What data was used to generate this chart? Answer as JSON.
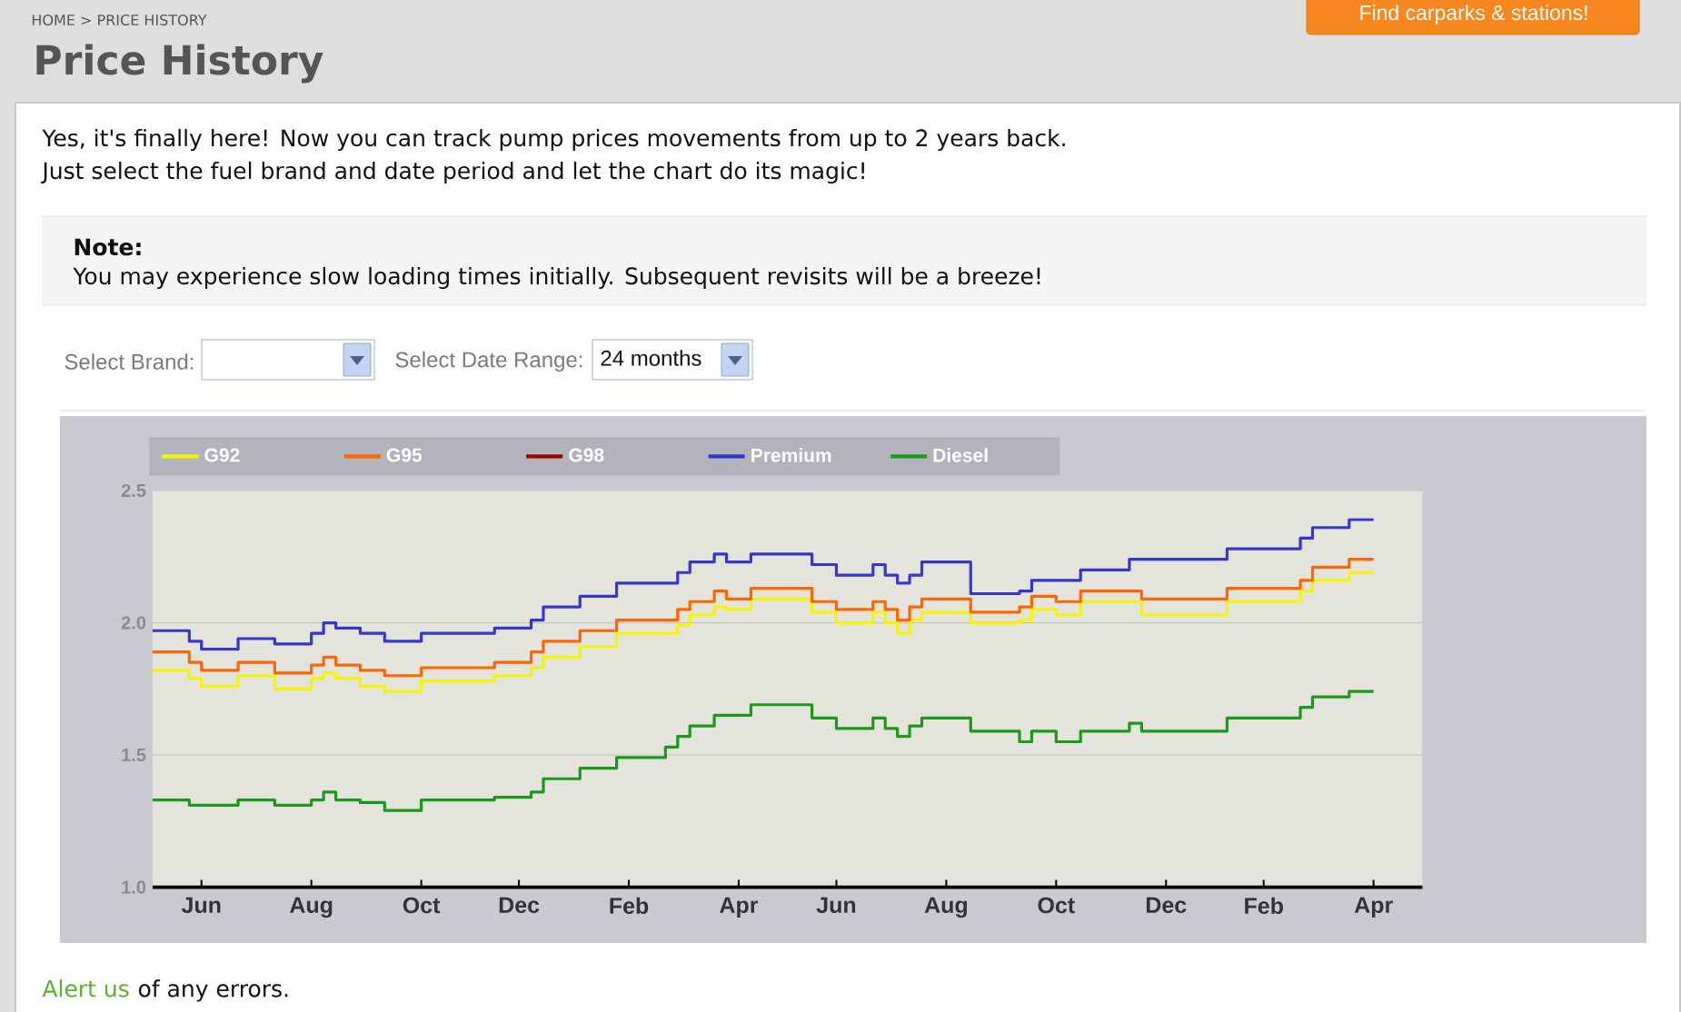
{
  "chart_data": {
    "type": "step",
    "title": "Price History",
    "annotations": [
      "HOME > PRICE HISTORY",
      "Find carparks & stations!",
      "Yes, it's finally here! Now you can track pump prices movements from up to 2 years back.",
      "Just select the fuel brand and date period and let the chart do its magic!",
      "Note:",
      "You may experience slow loading times initially. Subsequent revisits will be a breeze!",
      "Select Brand:",
      "Select Date Range:",
      "24 months",
      "Alert us",
      "of any errors."
    ],
    "categories": [
      null,
      null,
      null,
      null,
      "Jun",
      null,
      null,
      null,
      null,
      null,
      null,
      null,
      null,
      "Aug",
      null,
      null,
      null,
      null,
      null,
      null,
      null,
      null,
      "Oct",
      null,
      null,
      null,
      null,
      null,
      null,
      null,
      "Dec",
      null,
      null,
      null,
      null,
      null,
      null,
      null,
      null,
      "Feb",
      null,
      null,
      null,
      null,
      null,
      null,
      null,
      null,
      "Apr",
      null,
      null,
      null,
      null,
      null,
      null,
      null,
      "Jun",
      null,
      null,
      null,
      null,
      null,
      null,
      null,
      null,
      "Aug",
      null,
      null,
      null,
      null,
      null,
      null,
      null,
      null,
      "Oct",
      null,
      null,
      null,
      null,
      null,
      null,
      null,
      null,
      "Dec",
      null,
      null,
      null,
      null,
      null,
      null,
      null,
      "Feb",
      null,
      null,
      null,
      null,
      null,
      null,
      null,
      null,
      "Apr",
      null,
      null,
      null
    ],
    "ylim": [
      1.0,
      2.5
    ],
    "yticks": [
      {
        "value": 1.0,
        "label": "1.0"
      },
      {
        "value": 1.5,
        "label": "1.5"
      },
      {
        "value": 2.0,
        "label": "2.0"
      },
      {
        "value": 2.5,
        "label": "2.5"
      }
    ],
    "grid": "y",
    "legend": "top left",
    "series": [
      {
        "name": "G92",
        "color": "#f5f500",
        "values": [
          1.82,
          1.82,
          1.82,
          1.79,
          1.76,
          1.76,
          1.76,
          1.8,
          1.8,
          1.8,
          1.75,
          1.75,
          1.75,
          1.79,
          1.81,
          1.79,
          1.79,
          1.76,
          1.76,
          1.74,
          1.74,
          1.74,
          1.78,
          1.78,
          1.78,
          1.78,
          1.78,
          1.78,
          1.8,
          1.8,
          1.8,
          1.83,
          1.87,
          1.87,
          1.87,
          1.91,
          1.91,
          1.91,
          1.96,
          1.96,
          1.96,
          1.96,
          1.96,
          1.99,
          2.03,
          2.03,
          2.06,
          2.05,
          2.05,
          2.09,
          2.09,
          2.09,
          2.09,
          2.09,
          2.04,
          2.04,
          2.0,
          2.0,
          2.0,
          2.04,
          2.0,
          1.96,
          2.01,
          2.04,
          2.04,
          2.04,
          2.04,
          2.0,
          2.0,
          2.0,
          2.0,
          2.01,
          2.05,
          2.05,
          2.03,
          2.03,
          2.08,
          2.08,
          2.08,
          2.08,
          2.08,
          2.03,
          2.03,
          2.03,
          2.03,
          2.03,
          2.03,
          2.03,
          2.08,
          2.08,
          2.08,
          2.08,
          2.08,
          2.08,
          2.12,
          2.16,
          2.16,
          2.16,
          2.19,
          2.19,
          2.19,
          null,
          null,
          null
        ]
      },
      {
        "name": "G95",
        "color": "#ff6600",
        "values": [
          1.89,
          1.89,
          1.89,
          1.85,
          1.82,
          1.82,
          1.82,
          1.85,
          1.85,
          1.85,
          1.81,
          1.81,
          1.81,
          1.84,
          1.87,
          1.84,
          1.84,
          1.82,
          1.82,
          1.8,
          1.8,
          1.8,
          1.83,
          1.83,
          1.83,
          1.83,
          1.83,
          1.83,
          1.85,
          1.85,
          1.85,
          1.89,
          1.93,
          1.93,
          1.93,
          1.97,
          1.97,
          1.97,
          2.01,
          2.01,
          2.01,
          2.01,
          2.01,
          2.05,
          2.08,
          2.08,
          2.12,
          2.09,
          2.09,
          2.13,
          2.13,
          2.13,
          2.13,
          2.13,
          2.08,
          2.08,
          2.05,
          2.05,
          2.05,
          2.08,
          2.05,
          2.01,
          2.06,
          2.09,
          2.09,
          2.09,
          2.09,
          2.04,
          2.04,
          2.04,
          2.04,
          2.06,
          2.1,
          2.1,
          2.08,
          2.08,
          2.12,
          2.12,
          2.12,
          2.12,
          2.12,
          2.09,
          2.09,
          2.09,
          2.09,
          2.09,
          2.09,
          2.09,
          2.13,
          2.13,
          2.13,
          2.13,
          2.13,
          2.13,
          2.16,
          2.21,
          2.21,
          2.21,
          2.24,
          2.24,
          2.24,
          null,
          null,
          null
        ]
      },
      {
        "name": "G98",
        "color": "#990000",
        "values": [
          null,
          null,
          null,
          null,
          null,
          null,
          null,
          null,
          null,
          null,
          null,
          null,
          null,
          null,
          null,
          null,
          null,
          null,
          null,
          null,
          null,
          null,
          null,
          null,
          null,
          null,
          null,
          null,
          null,
          null,
          null,
          null,
          null,
          null,
          null,
          null,
          null,
          null,
          null,
          null,
          null,
          null,
          null,
          null,
          null,
          null,
          null,
          null,
          null,
          null,
          null,
          null,
          null,
          null,
          null,
          null,
          null,
          null,
          null,
          null,
          null,
          null,
          null,
          null,
          null,
          null,
          null,
          null,
          null,
          null,
          null,
          null,
          null,
          null,
          null,
          null,
          null,
          null,
          null,
          null,
          null,
          null,
          null,
          null,
          null,
          null,
          null,
          null,
          null,
          null,
          null,
          null,
          null,
          null,
          null,
          null,
          null,
          null,
          null,
          null,
          null,
          null,
          null,
          null
        ]
      },
      {
        "name": "Premium",
        "color": "#3535d0",
        "values": [
          1.97,
          1.97,
          1.97,
          1.93,
          1.9,
          1.9,
          1.9,
          1.94,
          1.94,
          1.94,
          1.92,
          1.92,
          1.92,
          1.96,
          2.0,
          1.98,
          1.98,
          1.96,
          1.96,
          1.93,
          1.93,
          1.93,
          1.96,
          1.96,
          1.96,
          1.96,
          1.96,
          1.96,
          1.98,
          1.98,
          1.98,
          2.01,
          2.06,
          2.06,
          2.06,
          2.1,
          2.1,
          2.1,
          2.15,
          2.15,
          2.15,
          2.15,
          2.15,
          2.19,
          2.23,
          2.23,
          2.26,
          2.23,
          2.23,
          2.26,
          2.26,
          2.26,
          2.26,
          2.26,
          2.22,
          2.22,
          2.18,
          2.18,
          2.18,
          2.22,
          2.18,
          2.15,
          2.18,
          2.23,
          2.23,
          2.23,
          2.23,
          2.11,
          2.11,
          2.11,
          2.11,
          2.12,
          2.16,
          2.16,
          2.16,
          2.16,
          2.2,
          2.2,
          2.2,
          2.2,
          2.24,
          2.24,
          2.24,
          2.24,
          2.24,
          2.24,
          2.24,
          2.24,
          2.28,
          2.28,
          2.28,
          2.28,
          2.28,
          2.28,
          2.32,
          2.36,
          2.36,
          2.36,
          2.39,
          2.39,
          2.39,
          null,
          null,
          null
        ]
      },
      {
        "name": "Diesel",
        "color": "#1a9a1a",
        "values": [
          1.33,
          1.33,
          1.33,
          1.31,
          1.31,
          1.31,
          1.31,
          1.33,
          1.33,
          1.33,
          1.31,
          1.31,
          1.31,
          1.33,
          1.36,
          1.33,
          1.33,
          1.32,
          1.32,
          1.29,
          1.29,
          1.29,
          1.33,
          1.33,
          1.33,
          1.33,
          1.33,
          1.33,
          1.34,
          1.34,
          1.34,
          1.36,
          1.41,
          1.41,
          1.41,
          1.45,
          1.45,
          1.45,
          1.49,
          1.49,
          1.49,
          1.49,
          1.53,
          1.57,
          1.61,
          1.61,
          1.65,
          1.65,
          1.65,
          1.69,
          1.69,
          1.69,
          1.69,
          1.69,
          1.64,
          1.64,
          1.6,
          1.6,
          1.6,
          1.64,
          1.6,
          1.57,
          1.61,
          1.64,
          1.64,
          1.64,
          1.64,
          1.59,
          1.59,
          1.59,
          1.59,
          1.55,
          1.59,
          1.59,
          1.55,
          1.55,
          1.59,
          1.59,
          1.59,
          1.59,
          1.62,
          1.59,
          1.59,
          1.59,
          1.59,
          1.59,
          1.59,
          1.59,
          1.64,
          1.64,
          1.64,
          1.64,
          1.64,
          1.64,
          1.68,
          1.72,
          1.72,
          1.72,
          1.74,
          1.74,
          1.74,
          null,
          null,
          null
        ]
      }
    ]
  }
}
